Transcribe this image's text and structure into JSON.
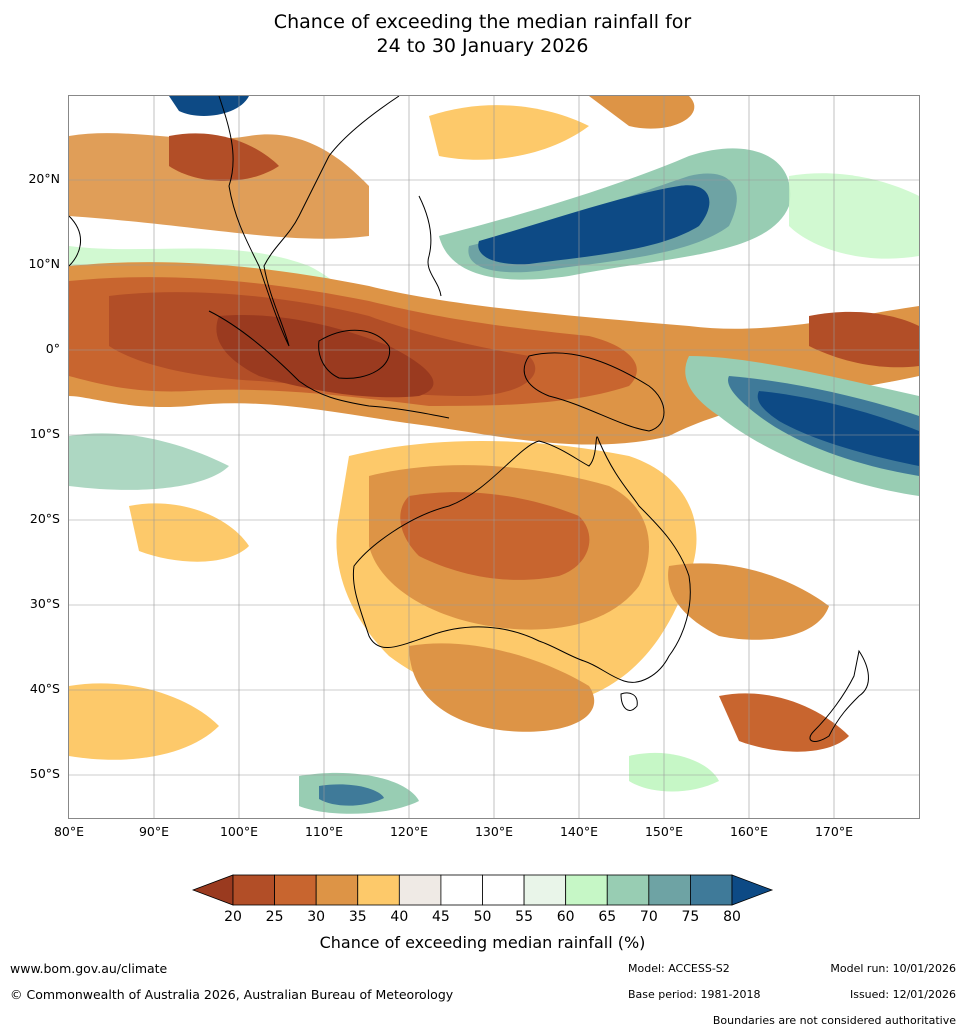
{
  "title_line1": "Chance of exceeding the median rainfall for",
  "title_line2": "24 to 30 January 2026",
  "map": {
    "lat_labels": [
      "20°N",
      "10°N",
      "0°",
      "10°S",
      "20°S",
      "30°S",
      "40°S",
      "50°S"
    ],
    "lon_labels": [
      "80°E",
      "90°E",
      "100°E",
      "110°E",
      "120°E",
      "130°E",
      "140°E",
      "150°E",
      "160°E",
      "170°E"
    ],
    "extent": {
      "lon_min": 80,
      "lon_max": 180,
      "lat_min": -55,
      "lat_max": 30
    }
  },
  "colorbar": {
    "ticks": [
      "20",
      "25",
      "30",
      "35",
      "40",
      "45",
      "50",
      "55",
      "60",
      "65",
      "70",
      "75",
      "80"
    ],
    "colors": [
      "#9a3a1f",
      "#b24e27",
      "#c8652f",
      "#dd9446",
      "#fdc96a",
      "#efeae5",
      "#ffffff",
      "#ffffff",
      "#e9f5e9",
      "#c6f7c6",
      "#98cdb3",
      "#6ea3a4",
      "#3f7a99",
      "#0d4a85"
    ],
    "title": "Chance of exceeding median rainfall (%)"
  },
  "footer": {
    "website": "www.bom.gov.au/climate",
    "copyright": "© Commonwealth of Australia 2026, Australian Bureau of Meteorology",
    "model": "Model: ACCESS-S2",
    "model_run": "Model run: 10/01/2026",
    "base_period": "Base period: 1981-2018",
    "issued": "Issued: 12/01/2026",
    "disclaimer": "Boundaries are not considered authoritative"
  }
}
